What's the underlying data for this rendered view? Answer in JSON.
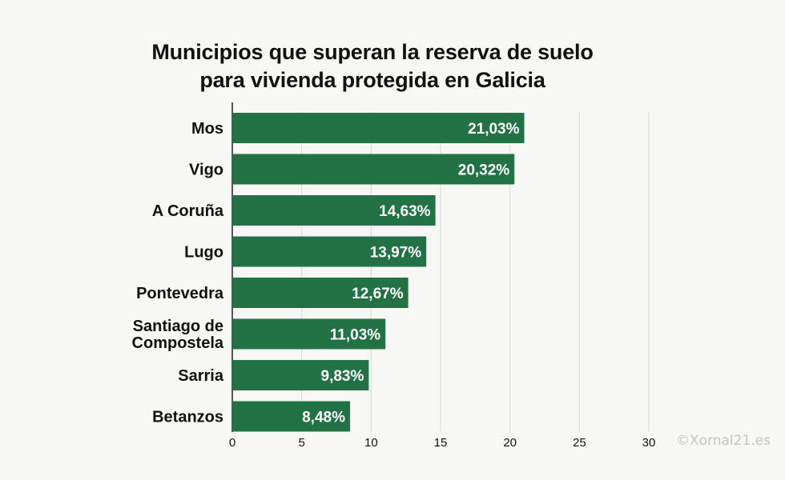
{
  "title_lines": [
    "Municipios que superan la reserva de suelo",
    "para vivienda protegida en Galicia"
  ],
  "watermark": "©Xornal21.es",
  "colors": {
    "bar": "#237245",
    "bar_label": "#ffffff",
    "grid": "#d8d8d8",
    "axis": "#222222",
    "background": "#f7f7f5"
  },
  "chart_data": {
    "type": "bar",
    "orientation": "horizontal",
    "categories": [
      "Mos",
      "Vigo",
      "A Coruña",
      "Lugo",
      "Pontevedra",
      "Santiago de Compostela",
      "Sarria",
      "Betanzos"
    ],
    "category_lines": [
      [
        "Mos"
      ],
      [
        "Vigo"
      ],
      [
        "A Coruña"
      ],
      [
        "Lugo"
      ],
      [
        "Pontevedra"
      ],
      [
        "Santiago de",
        "Compostela"
      ],
      [
        "Sarria"
      ],
      [
        "Betanzos"
      ]
    ],
    "values": [
      21.03,
      20.32,
      14.63,
      13.97,
      12.67,
      11.03,
      9.83,
      8.48
    ],
    "value_labels": [
      "21,03%",
      "20,32%",
      "14,63%",
      "13,97%",
      "12,67%",
      "11,03%",
      "9,83%",
      "8,48%"
    ],
    "xticks": [
      0,
      5,
      10,
      15,
      20,
      25,
      30
    ],
    "xtick_labels": [
      "0",
      "5",
      "10",
      "15",
      "20",
      "25",
      "30"
    ],
    "xlim": [
      0,
      30
    ],
    "grid": "vertical",
    "legend": "none",
    "xlabel": "",
    "ylabel": ""
  }
}
